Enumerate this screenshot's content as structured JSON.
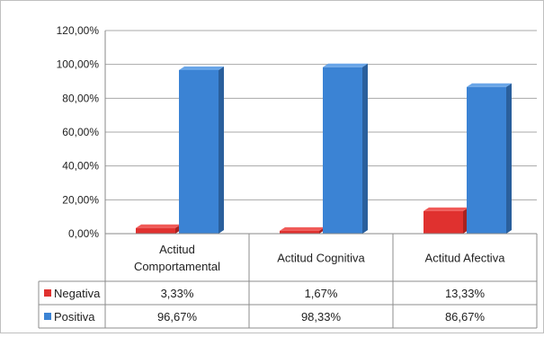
{
  "chart_data": {
    "type": "bar",
    "categories": [
      [
        "Actitud",
        "Comportamental"
      ],
      [
        "Actitud Cognitiva"
      ],
      [
        "Actitud Afectiva"
      ]
    ],
    "series": [
      {
        "name": "Negativa",
        "values": [
          3.33,
          1.67,
          13.33
        ],
        "labels": [
          "3,33%",
          "1,67%",
          "13,33%"
        ],
        "color": "#e0312f"
      },
      {
        "name": "Positiva",
        "values": [
          96.67,
          98.33,
          86.67
        ],
        "labels": [
          "96,67%",
          "98,33%",
          "86,67%"
        ],
        "color": "#3b83d4"
      }
    ],
    "ylim": [
      0,
      120
    ],
    "yticks": [
      "0,00%",
      "20,00%",
      "40,00%",
      "60,00%",
      "80,00%",
      "100,00%",
      "120,00%"
    ],
    "grid": true,
    "legend": "data-table"
  }
}
